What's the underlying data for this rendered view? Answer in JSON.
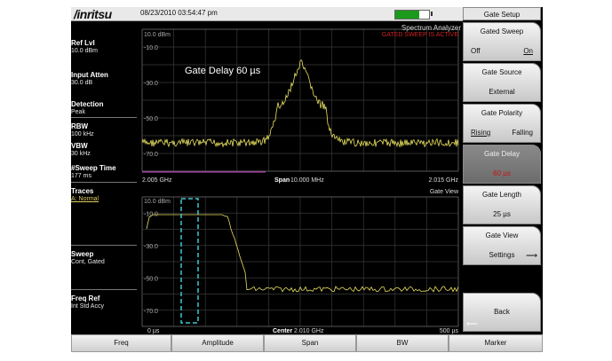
{
  "header": {
    "logo": "/inritsu",
    "datetime": "08/23/2010 03:54:47 pm",
    "battery_level": 0.72,
    "mode": "Spectrum Analyzer"
  },
  "sidebar": [
    {
      "label": "Ref Lvl",
      "value": "10.0 dBm"
    },
    {
      "label": "Input Atten",
      "value": "30.0 dB"
    },
    {
      "label": "Detection",
      "value": "Peak"
    },
    {
      "label": "RBW",
      "value": "100 kHz"
    },
    {
      "label": "VBW",
      "value": "30 kHz"
    },
    {
      "label": "#Sweep Time",
      "value": "177 ms"
    },
    {
      "label": "Traces",
      "value": "A: Normal"
    },
    {
      "label": "Sweep",
      "value": "Cont, Gated"
    },
    {
      "label": "Freq Ref",
      "value": "Int Std Accy"
    }
  ],
  "top_graph": {
    "ref_label": "10.0 dBm",
    "y_labels": [
      "-10.0",
      "-30.0",
      "-50.0",
      "-70.0"
    ],
    "annotation": "Gate Delay  60 µs",
    "status": "GATED SWEEP IS ACTIVE",
    "start_freq": "2.005 GHz",
    "span_label": "Span",
    "span_value": "10.000 MHz",
    "stop_freq": "2.015 GHz"
  },
  "bottom_graph": {
    "title": "Gate View",
    "ref_label": "10.0 dBm",
    "y_labels": [
      "-10.0",
      "-30.0",
      "-50.0",
      "-70.0"
    ],
    "start_time": "0 µs",
    "center_label": "Center",
    "center_value": "2.010 GHz",
    "stop_time": "500 µs"
  },
  "menu": {
    "title": "Gate Setup",
    "gated_sweep": {
      "label": "Gated Sweep",
      "off": "Off",
      "on": "On"
    },
    "gate_source": {
      "label": "Gate Source",
      "value": "External"
    },
    "gate_polarity": {
      "label": "Gate Polarity",
      "rising": "Rising",
      "falling": "Falling"
    },
    "gate_delay": {
      "label": "Gate Delay",
      "value": "60 µs"
    },
    "gate_length": {
      "label": "Gate Length",
      "value": "25 µs"
    },
    "gate_view": {
      "label": "Gate View",
      "value": "Settings"
    },
    "back": "Back"
  },
  "bottom_menu": [
    "Freq",
    "Amplitude",
    "Span",
    "BW",
    "Marker"
  ],
  "colors": {
    "trace": "#e8e060",
    "gate_marker": "#40c8d0",
    "alert": "#cc2222",
    "span_line": "#cc44cc"
  }
}
